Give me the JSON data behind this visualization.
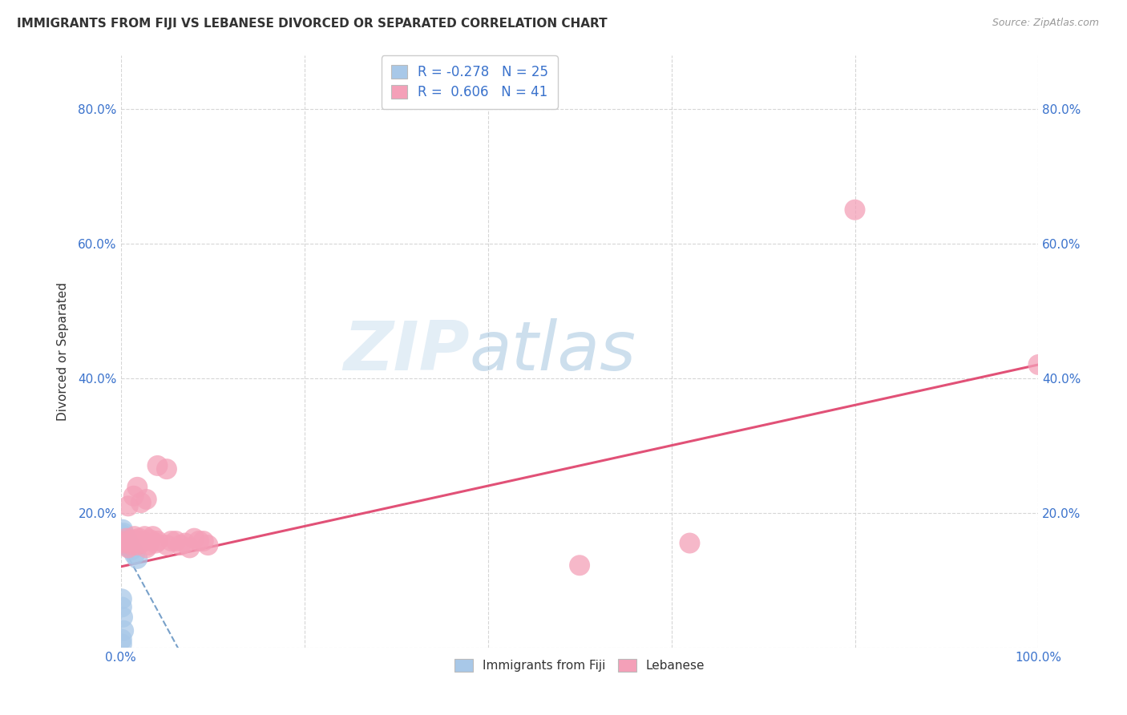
{
  "title": "IMMIGRANTS FROM FIJI VS LEBANESE DIVORCED OR SEPARATED CORRELATION CHART",
  "source": "Source: ZipAtlas.com",
  "ylabel": "Divorced or Separated",
  "xlim": [
    0,
    1.0
  ],
  "ylim": [
    0,
    0.88
  ],
  "xticks": [
    0.0,
    0.2,
    0.4,
    0.6,
    0.8,
    1.0
  ],
  "xticklabels": [
    "0.0%",
    "",
    "",
    "",
    "",
    "100.0%"
  ],
  "yticks": [
    0.0,
    0.2,
    0.4,
    0.6,
    0.8
  ],
  "yticklabels": [
    "",
    "20.0%",
    "40.0%",
    "60.0%",
    "80.0%"
  ],
  "legend_labels": [
    "Immigrants from Fiji",
    "Lebanese"
  ],
  "fiji_R": -0.278,
  "fiji_N": 25,
  "lebanese_R": 0.606,
  "lebanese_N": 41,
  "fiji_color": "#a8c8e8",
  "lebanese_color": "#f4a0b8",
  "fiji_trend_color": "#6090c0",
  "lebanese_trend_color": "#e04870",
  "fiji_trend_intercept": 0.155,
  "fiji_trend_slope": -2.5,
  "lebanese_trend_intercept": 0.12,
  "lebanese_trend_slope": 0.3,
  "fiji_points": [
    [
      0.001,
      0.168
    ],
    [
      0.002,
      0.162
    ],
    [
      0.002,
      0.158
    ],
    [
      0.003,
      0.155
    ],
    [
      0.003,
      0.16
    ],
    [
      0.004,
      0.152
    ],
    [
      0.004,
      0.165
    ],
    [
      0.005,
      0.158
    ],
    [
      0.005,
      0.155
    ],
    [
      0.006,
      0.162
    ],
    [
      0.007,
      0.158
    ],
    [
      0.008,
      0.155
    ],
    [
      0.009,
      0.152
    ],
    [
      0.01,
      0.148
    ],
    [
      0.012,
      0.145
    ],
    [
      0.015,
      0.138
    ],
    [
      0.018,
      0.132
    ],
    [
      0.003,
      0.17
    ],
    [
      0.002,
      0.175
    ],
    [
      0.001,
      0.06
    ],
    [
      0.001,
      0.072
    ],
    [
      0.002,
      0.045
    ],
    [
      0.003,
      0.025
    ],
    [
      0.001,
      0.012
    ],
    [
      0.001,
      0.005
    ]
  ],
  "lebanese_points": [
    [
      0.003,
      0.155
    ],
    [
      0.005,
      0.158
    ],
    [
      0.006,
      0.162
    ],
    [
      0.008,
      0.148
    ],
    [
      0.01,
      0.158
    ],
    [
      0.012,
      0.152
    ],
    [
      0.014,
      0.16
    ],
    [
      0.015,
      0.165
    ],
    [
      0.016,
      0.158
    ],
    [
      0.018,
      0.152
    ],
    [
      0.02,
      0.162
    ],
    [
      0.022,
      0.155
    ],
    [
      0.024,
      0.158
    ],
    [
      0.026,
      0.165
    ],
    [
      0.028,
      0.148
    ],
    [
      0.03,
      0.152
    ],
    [
      0.032,
      0.16
    ],
    [
      0.035,
      0.165
    ],
    [
      0.038,
      0.155
    ],
    [
      0.04,
      0.158
    ],
    [
      0.008,
      0.21
    ],
    [
      0.014,
      0.225
    ],
    [
      0.018,
      0.238
    ],
    [
      0.022,
      0.215
    ],
    [
      0.028,
      0.22
    ],
    [
      0.05,
      0.152
    ],
    [
      0.055,
      0.158
    ],
    [
      0.06,
      0.158
    ],
    [
      0.065,
      0.152
    ],
    [
      0.07,
      0.155
    ],
    [
      0.075,
      0.148
    ],
    [
      0.08,
      0.162
    ],
    [
      0.085,
      0.158
    ],
    [
      0.04,
      0.27
    ],
    [
      0.05,
      0.265
    ],
    [
      0.09,
      0.158
    ],
    [
      0.095,
      0.152
    ],
    [
      0.5,
      0.122
    ],
    [
      0.62,
      0.155
    ],
    [
      0.8,
      0.65
    ],
    [
      1.0,
      0.42
    ]
  ]
}
